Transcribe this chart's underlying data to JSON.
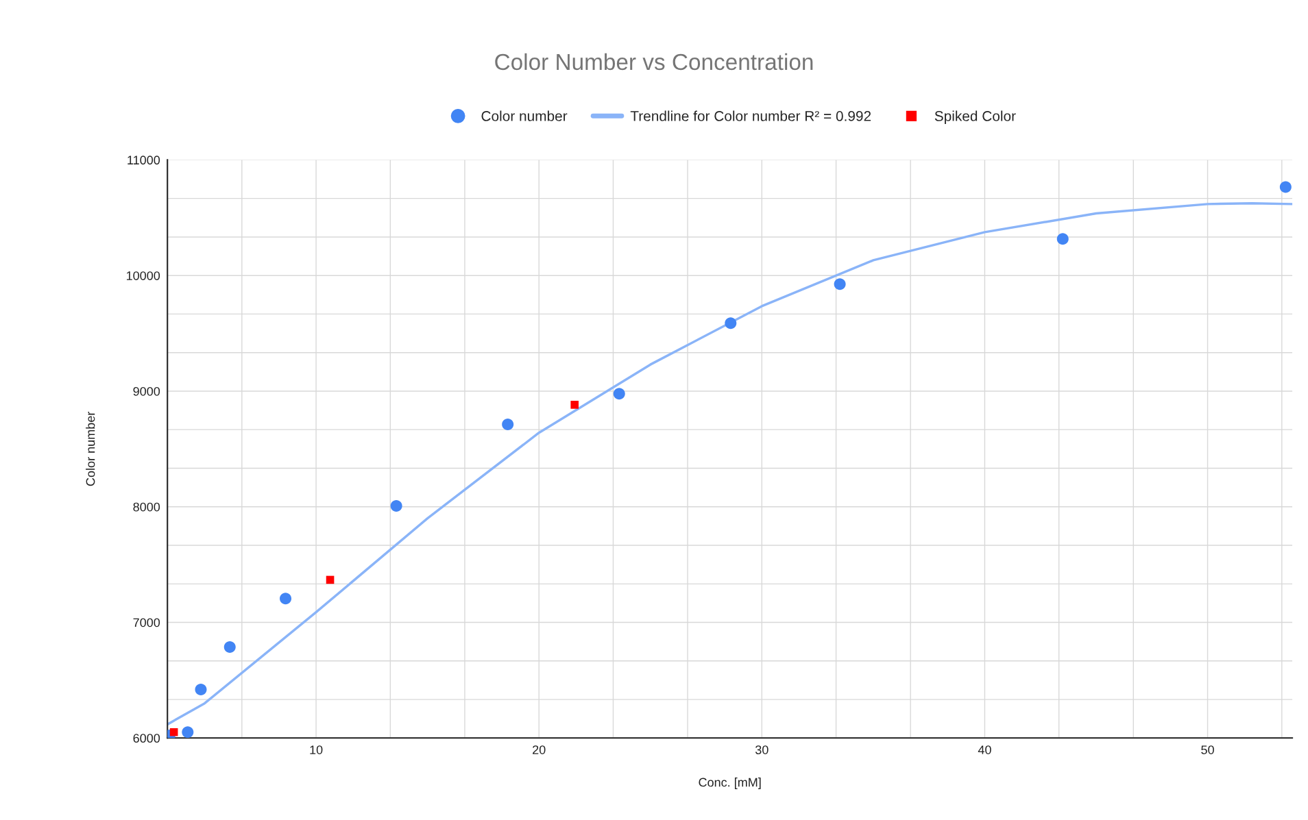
{
  "chart_data": {
    "type": "scatter",
    "title": "Color Number vs Concentration",
    "xlabel": "Conc. [mM]",
    "ylabel": "Color number",
    "xlim": [
      3.33,
      53.8
    ],
    "ylim": [
      6000,
      11000
    ],
    "xticks": [
      {
        "value": 6.67,
        "label": null
      },
      10,
      {
        "value": 13.33,
        "label": null
      },
      {
        "value": 16.67,
        "label": null
      },
      20,
      {
        "value": 23.33,
        "label": null
      },
      {
        "value": 26.67,
        "label": null
      },
      30,
      {
        "value": 33.33,
        "label": null
      },
      {
        "value": 36.67,
        "label": null
      },
      40,
      {
        "value": 43.33,
        "label": null
      },
      {
        "value": 46.67,
        "label": null
      },
      50,
      {
        "value": 53.33,
        "label": null
      }
    ],
    "yticks": [
      6000,
      {
        "value": 6333,
        "label": null
      },
      {
        "value": 6667,
        "label": null
      },
      7000,
      {
        "value": 7333,
        "label": null
      },
      {
        "value": 7667,
        "label": null
      },
      8000,
      {
        "value": 8333,
        "label": null
      },
      {
        "value": 8667,
        "label": null
      },
      9000,
      {
        "value": 9333,
        "label": null
      },
      {
        "value": 9667,
        "label": null
      },
      10000,
      {
        "value": 10333,
        "label": null
      },
      {
        "value": 10667,
        "label": null
      },
      11000
    ],
    "grid": true,
    "legend": "top",
    "series": [
      {
        "name": "Color number",
        "marker": "circle",
        "color": "#4285f4",
        "x": [
          3.43,
          4.24,
          4.83,
          6.13,
          8.63,
          13.6,
          18.6,
          23.6,
          28.6,
          33.5,
          43.5,
          53.5
        ],
        "values": [
          6022,
          6051,
          6419,
          6787,
          7206,
          8007,
          8713,
          8978,
          9588,
          9926,
          10316,
          10765
        ]
      },
      {
        "name": "Trendline for Color number R² = 0.992",
        "type": "line",
        "marker": "none",
        "color": "#8ab4f8",
        "x": [
          3.33,
          5,
          10,
          15,
          20,
          25,
          30,
          35,
          40,
          45,
          50,
          52,
          53.8
        ],
        "values": [
          6118,
          6300,
          7088,
          7900,
          8640,
          9230,
          9735,
          10132,
          10375,
          10537,
          10618,
          10625,
          10618
        ]
      },
      {
        "name": "Spiked Color",
        "marker": "square",
        "color": "#ff0000",
        "x": [
          3.62,
          10.63,
          21.6
        ],
        "values": [
          6051,
          7368,
          8882
        ]
      }
    ]
  }
}
